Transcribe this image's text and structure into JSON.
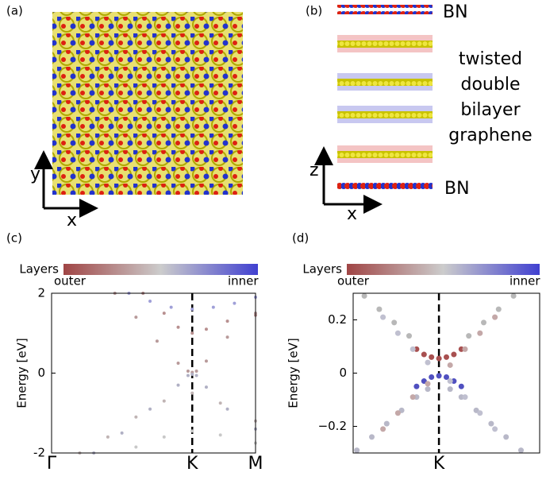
{
  "panels": {
    "a": {
      "label": "(a)",
      "axis_y": "y",
      "axis_x": "x"
    },
    "b": {
      "label": "(b)",
      "top_layer": "BN",
      "middle_lines": [
        "twisted",
        "double",
        "bilayer",
        "graphene"
      ],
      "bottom_layer": "BN",
      "axis_y": "z",
      "axis_x": "x"
    }
  },
  "chart_data": [
    {
      "type": "scatter",
      "panel_label": "(c)",
      "colorbar_label": "Layers",
      "colorbar_min_label": "outer",
      "colorbar_max_label": "inner",
      "ylabel": "Energy [eV]",
      "xlim": [
        0,
        1.45
      ],
      "ylim": [
        -2,
        2
      ],
      "yticks": [
        -2,
        0,
        2
      ],
      "xticks": [
        {
          "value": 0,
          "label": "Γ"
        },
        {
          "value": 1,
          "label": "K"
        },
        {
          "value": 1.45,
          "label": "M"
        }
      ],
      "k_line": 1,
      "series": [
        {
          "color": "#b89a9a",
          "x": [
            0.45,
            0.6,
            0.75,
            0.9,
            0.97,
            1.0,
            1.03,
            1.1,
            1.25,
            1.45
          ],
          "values": [
            2,
            1.4,
            0.8,
            0.25,
            0.05,
            0.02,
            0.05,
            0.3,
            0.9,
            1.5
          ]
        },
        {
          "color": "#b0b0c4",
          "x": [
            0.3,
            0.5,
            0.7,
            0.9,
            0.97,
            1.0,
            1.03,
            1.1,
            1.25,
            1.45
          ],
          "values": [
            -2,
            -1.5,
            -0.9,
            -0.3,
            -0.06,
            -0.03,
            -0.06,
            -0.35,
            -0.9,
            -1.4
          ]
        },
        {
          "color": "#c0b4b4",
          "x": [
            0.2,
            0.4,
            0.6,
            0.8,
            1.0,
            1.2,
            1.45
          ],
          "values": [
            -2,
            -1.6,
            -1.1,
            -0.7,
            -0.5,
            -0.75,
            -1.2
          ]
        },
        {
          "color": "#a0a0d8",
          "x": [
            0.55,
            0.7,
            0.85,
            1.0,
            1.15,
            1.3,
            1.45
          ],
          "values": [
            2,
            1.8,
            1.65,
            1.6,
            1.65,
            1.75,
            1.9
          ]
        },
        {
          "color": "#b89090",
          "x": [
            0.65,
            0.8,
            0.9,
            1.0,
            1.1,
            1.25,
            1.45
          ],
          "values": [
            2,
            1.5,
            1.15,
            1.0,
            1.1,
            1.3,
            1.45
          ]
        },
        {
          "color": "#c8c8c8",
          "x": [
            0.6,
            0.8,
            1.0,
            1.2,
            1.45
          ],
          "values": [
            -1.85,
            -1.6,
            -1.45,
            -1.55,
            -1.75
          ]
        }
      ]
    },
    {
      "type": "scatter",
      "panel_label": "(d)",
      "colorbar_label": "Layers",
      "colorbar_min_label": "outer",
      "colorbar_max_label": "inner",
      "ylabel": "Energy [eV]",
      "xlim": [
        -0.46,
        0.54
      ],
      "ylim": [
        -0.3,
        0.3
      ],
      "yticks": [
        {
          "value": -0.2,
          "label": "−0.2"
        },
        0,
        0.2
      ],
      "xticks": [
        {
          "value": 0,
          "label": "K"
        }
      ],
      "k_line": 0,
      "series": [
        {
          "color": "#a85050",
          "x": [
            -0.12,
            -0.08,
            -0.04,
            0,
            0.04,
            0.08,
            0.12
          ],
          "values": [
            0.09,
            0.07,
            0.06,
            0.055,
            0.06,
            0.07,
            0.09
          ]
        },
        {
          "color": "#5050c0",
          "x": [
            -0.12,
            -0.08,
            -0.04,
            0,
            0.04,
            0.08,
            0.12
          ],
          "values": [
            -0.05,
            -0.03,
            -0.015,
            -0.01,
            -0.015,
            -0.03,
            -0.05
          ]
        },
        {
          "color": "#b8b8b8",
          "x": [
            -0.4,
            -0.32,
            -0.24,
            -0.16,
            0.16,
            0.24,
            0.32,
            0.4
          ],
          "values": [
            0.29,
            0.24,
            0.19,
            0.14,
            0.14,
            0.19,
            0.24,
            0.29
          ]
        },
        {
          "color": "#b8b8c8",
          "x": [
            -0.44,
            -0.36,
            -0.28,
            -0.2,
            -0.12,
            -0.06,
            0.06,
            0.12,
            0.2,
            0.28,
            0.36,
            0.44
          ],
          "values": [
            -0.29,
            -0.24,
            -0.19,
            -0.14,
            -0.09,
            -0.06,
            -0.06,
            -0.09,
            -0.14,
            -0.19,
            -0.24,
            -0.29
          ]
        },
        {
          "color": "#c4a8a8",
          "x": [
            -0.3,
            -0.22,
            -0.14,
            -0.06,
            0.06,
            0.14,
            0.22,
            0.3
          ],
          "values": [
            -0.21,
            -0.15,
            -0.09,
            -0.04,
            0.03,
            0.09,
            0.15,
            0.21
          ]
        },
        {
          "color": "#c0c0d0",
          "x": [
            -0.3,
            -0.22,
            -0.14,
            -0.06,
            0.06,
            0.14,
            0.22,
            0.3
          ],
          "values": [
            0.21,
            0.15,
            0.09,
            0.04,
            -0.03,
            -0.09,
            -0.15,
            -0.21
          ]
        }
      ]
    }
  ]
}
